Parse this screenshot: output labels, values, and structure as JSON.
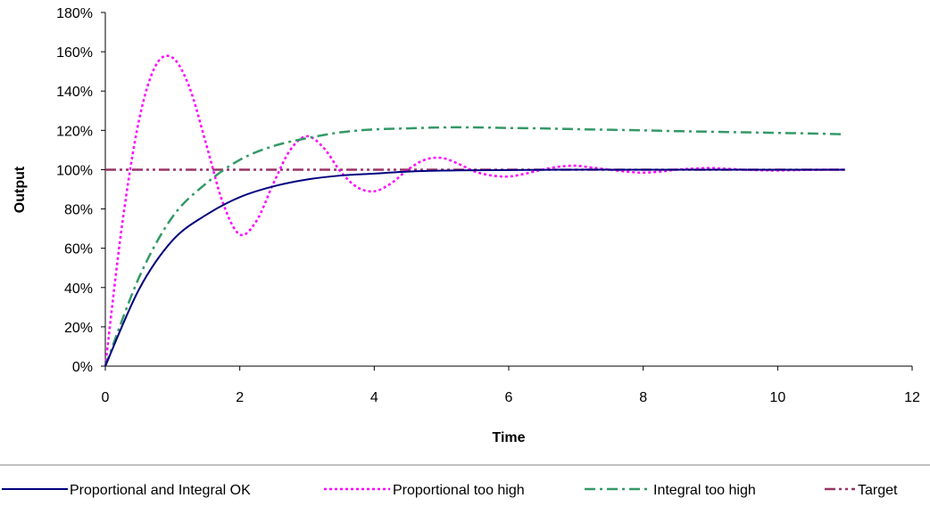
{
  "chart_data": {
    "type": "line",
    "title": "",
    "xlabel": "Time",
    "ylabel": "Output",
    "xlim": [
      0,
      12
    ],
    "ylim": [
      0,
      1.8
    ],
    "x_ticks": [
      0,
      2,
      4,
      6,
      8,
      10,
      12
    ],
    "x_tick_labels": [
      "0",
      "2",
      "4",
      "6",
      "8",
      "10",
      "12"
    ],
    "y_ticks": [
      0,
      0.2,
      0.4,
      0.6,
      0.8,
      1.0,
      1.2,
      1.4,
      1.6,
      1.8
    ],
    "y_tick_labels": [
      "0%",
      "20%",
      "40%",
      "60%",
      "80%",
      "100%",
      "120%",
      "140%",
      "160%",
      "180%"
    ],
    "grid": false,
    "legend_position": "bottom",
    "series": [
      {
        "name": "Proportional and Integral OK",
        "color": "#000080",
        "style": "solid",
        "x": [
          0,
          0.5,
          1,
          1.5,
          2,
          2.5,
          3,
          3.5,
          4,
          4.5,
          5,
          5.5,
          6,
          6.5,
          7,
          7.5,
          8,
          8.5,
          9,
          9.5,
          10,
          10.5,
          11
        ],
        "y": [
          0,
          0.39,
          0.64,
          0.77,
          0.86,
          0.915,
          0.95,
          0.97,
          0.98,
          0.99,
          0.995,
          0.997,
          0.998,
          0.999,
          1.0,
          1.0,
          1.0,
          1.0,
          1.0,
          1.0,
          1.0,
          1.0,
          1.0
        ]
      },
      {
        "name": "Proportional too high",
        "color": "#ff00ff",
        "style": "dotted",
        "x": [
          0,
          0.25,
          0.5,
          0.75,
          1,
          1.25,
          1.5,
          1.75,
          2,
          2.25,
          2.5,
          2.75,
          3,
          3.25,
          3.5,
          3.75,
          4,
          4.25,
          4.5,
          4.75,
          5,
          5.25,
          5.5,
          5.75,
          6,
          6.25,
          6.5,
          6.75,
          7,
          7.25,
          7.5,
          7.75,
          8,
          8.25,
          8.5,
          8.75,
          9,
          9.25,
          9.5,
          9.75,
          10,
          10.5,
          11
        ],
        "y": [
          0,
          0.72,
          1.25,
          1.53,
          1.57,
          1.42,
          1.13,
          0.83,
          0.67,
          0.74,
          0.93,
          1.1,
          1.17,
          1.11,
          0.99,
          0.91,
          0.89,
          0.93,
          1.0,
          1.05,
          1.06,
          1.03,
          0.99,
          0.97,
          0.965,
          0.98,
          1.0,
          1.015,
          1.02,
          1.01,
          1.0,
          0.99,
          0.985,
          0.99,
          1.0,
          1.005,
          1.008,
          1.004,
          1.0,
          0.997,
          0.996,
          0.999,
          1.0
        ]
      },
      {
        "name": "Integral too high",
        "color": "#339966",
        "style": "dashdot",
        "x": [
          0,
          0.5,
          1,
          1.5,
          2,
          2.5,
          3,
          3.5,
          4,
          4.5,
          5,
          5.5,
          6,
          6.5,
          7,
          7.5,
          8,
          8.5,
          9,
          9.5,
          10,
          10.5,
          11
        ],
        "y": [
          0,
          0.45,
          0.76,
          0.93,
          1.05,
          1.12,
          1.16,
          1.19,
          1.205,
          1.21,
          1.215,
          1.215,
          1.212,
          1.21,
          1.206,
          1.203,
          1.2,
          1.196,
          1.193,
          1.19,
          1.187,
          1.184,
          1.18
        ]
      },
      {
        "name": "Target",
        "color": "#993366",
        "style": "dashdotdot",
        "x": [
          0,
          11
        ],
        "y": [
          1.0,
          1.0
        ]
      }
    ]
  }
}
